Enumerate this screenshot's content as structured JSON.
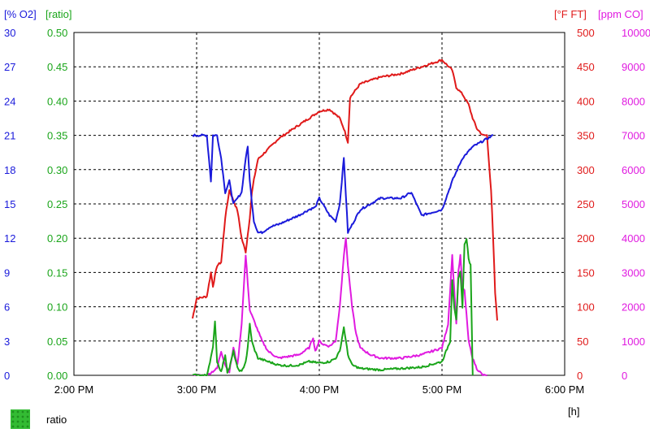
{
  "chart_data": {
    "type": "line",
    "x_unit_label": "[h]",
    "x_ticks": [
      "2:00 PM",
      "3:00 PM",
      "4:00 PM",
      "5:00 PM",
      "6:00 PM"
    ],
    "xlim": [
      "14:00",
      "18:00"
    ],
    "grid": "dashed, inner lines",
    "axes": [
      {
        "id": "o2",
        "label": "[% O2]",
        "side": "left",
        "color": "#1a1adb",
        "ticks": [
          "0",
          "3",
          "6",
          "9",
          "12",
          "15",
          "18",
          "21",
          "24",
          "27",
          "30"
        ],
        "ylim": [
          0,
          30
        ]
      },
      {
        "id": "ratio",
        "label": "[ratio]",
        "side": "left",
        "color": "#1aa51a",
        "ticks": [
          "0.00",
          "0.05",
          "0.10",
          "0.15",
          "0.20",
          "0.25",
          "0.30",
          "0.35",
          "0.40",
          "0.45",
          "0.50"
        ],
        "ylim": [
          0,
          0.5
        ]
      },
      {
        "id": "ft",
        "label": "[°F FT]",
        "side": "right",
        "color": "#e01a1a",
        "ticks": [
          "0",
          "50",
          "100",
          "150",
          "200",
          "250",
          "300",
          "350",
          "400",
          "450",
          "500"
        ],
        "ylim": [
          0,
          500
        ]
      },
      {
        "id": "co",
        "label": "[ppm CO]",
        "side": "right",
        "color": "#e01ae0",
        "ticks": [
          "0",
          "1000",
          "2000",
          "3000",
          "4000",
          "5000",
          "6000",
          "7000",
          "8000",
          "9000",
          "10000"
        ],
        "ylim": [
          0,
          10000
        ]
      }
    ],
    "series": [
      {
        "axis": "ft",
        "color": "#e01a1a",
        "x": [
          "14:58",
          "15:00",
          "15:05",
          "15:07",
          "15:08",
          "15:10",
          "15:12",
          "15:14",
          "15:16",
          "15:18",
          "15:20",
          "15:22",
          "15:24",
          "15:26",
          "15:27",
          "15:28",
          "15:30",
          "15:35",
          "15:40",
          "15:45",
          "15:50",
          "15:55",
          "16:00",
          "16:05",
          "16:10",
          "16:12",
          "16:14",
          "16:15",
          "16:20",
          "16:30",
          "16:40",
          "16:50",
          "17:00",
          "17:05",
          "17:07",
          "17:10",
          "17:13",
          "17:15",
          "17:17",
          "17:20",
          "17:22",
          "17:24",
          "17:25",
          "17:26",
          "17:27"
        ],
        "y": [
          83,
          112,
          115,
          150,
          130,
          160,
          165,
          230,
          270,
          255,
          240,
          200,
          180,
          230,
          265,
          285,
          315,
          330,
          345,
          355,
          365,
          375,
          385,
          388,
          375,
          360,
          340,
          405,
          425,
          435,
          440,
          450,
          460,
          445,
          420,
          410,
          395,
          375,
          360,
          350,
          350,
          270,
          200,
          120,
          80
        ]
      },
      {
        "axis": "o2",
        "color": "#1a1adb",
        "x": [
          "14:58",
          "15:05",
          "15:07",
          "15:08",
          "15:09",
          "15:10",
          "15:12",
          "15:14",
          "15:16",
          "15:18",
          "15:20",
          "15:22",
          "15:24",
          "15:25",
          "15:26",
          "15:28",
          "15:30",
          "15:32",
          "15:36",
          "15:40",
          "15:45",
          "15:50",
          "15:55",
          "15:58",
          "16:00",
          "16:05",
          "16:08",
          "16:10",
          "16:11",
          "16:12",
          "16:14",
          "16:20",
          "16:30",
          "16:40",
          "16:45",
          "16:50",
          "17:00",
          "17:05",
          "17:10",
          "17:15",
          "17:20",
          "17:25"
        ],
        "y": [
          21,
          21,
          17,
          21,
          21,
          21,
          19,
          16,
          17,
          15,
          15.5,
          16,
          19,
          20,
          17,
          13.5,
          12.5,
          12.5,
          13,
          13.2,
          13.6,
          14,
          14.5,
          14.7,
          15.5,
          14,
          13.5,
          15,
          17,
          19,
          12.5,
          14.5,
          15.5,
          15.5,
          16,
          14,
          14.5,
          17,
          19,
          20,
          20.5,
          21
        ]
      },
      {
        "axis": "co",
        "color": "#e01ae0",
        "x": [
          "14:58",
          "15:05",
          "15:10",
          "15:12",
          "15:14",
          "15:16",
          "15:18",
          "15:20",
          "15:22",
          "15:24",
          "15:26",
          "15:28",
          "15:30",
          "15:32",
          "15:35",
          "15:40",
          "15:45",
          "15:50",
          "15:55",
          "15:57",
          "15:58",
          "16:00",
          "16:02",
          "16:05",
          "16:08",
          "16:10",
          "16:12",
          "16:13",
          "16:14",
          "16:16",
          "16:18",
          "16:20",
          "16:25",
          "16:30",
          "16:35",
          "16:40",
          "16:45",
          "16:50",
          "17:00",
          "17:03",
          "17:05",
          "17:06",
          "17:07",
          "17:08",
          "17:09",
          "17:10",
          "17:11",
          "17:13",
          "17:15",
          "17:17",
          "17:20",
          "17:22"
        ],
        "y": [
          0,
          0,
          200,
          700,
          300,
          100,
          800,
          300,
          1500,
          3500,
          1900,
          1600,
          1300,
          1000,
          700,
          500,
          550,
          600,
          800,
          1100,
          700,
          1000,
          900,
          850,
          1000,
          2000,
          3500,
          4000,
          3200,
          2000,
          1200,
          800,
          600,
          500,
          500,
          500,
          550,
          600,
          800,
          1500,
          3500,
          2500,
          1500,
          3000,
          3500,
          2500,
          2500,
          1000,
          500,
          200,
          0,
          0
        ]
      },
      {
        "axis": "ratio",
        "color": "#1aa51a",
        "x": [
          "14:58",
          "15:05",
          "15:08",
          "15:09",
          "15:10",
          "15:12",
          "15:14",
          "15:15",
          "15:16",
          "15:18",
          "15:20",
          "15:22",
          "15:24",
          "15:25",
          "15:26",
          "15:27",
          "15:28",
          "15:30",
          "15:35",
          "15:40",
          "15:45",
          "15:50",
          "15:55",
          "16:00",
          "16:05",
          "16:08",
          "16:10",
          "16:12",
          "16:13",
          "16:14",
          "16:16",
          "16:20",
          "16:30",
          "16:40",
          "16:50",
          "17:00",
          "17:04",
          "17:05",
          "17:06",
          "17:07",
          "17:08",
          "17:09",
          "17:10",
          "17:11",
          "17:12",
          "17:13",
          "17:14",
          "17:15"
        ],
        "y": [
          0,
          0,
          0.04,
          0.08,
          0.02,
          0.005,
          0.03,
          0.005,
          0.01,
          0.035,
          0.01,
          0.005,
          0.02,
          0.04,
          0.075,
          0.05,
          0.04,
          0.025,
          0.02,
          0.015,
          0.014,
          0.015,
          0.02,
          0.018,
          0.02,
          0.025,
          0.035,
          0.07,
          0.05,
          0.03,
          0.015,
          0.01,
          0.008,
          0.01,
          0.012,
          0.02,
          0.05,
          0.14,
          0.1,
          0.08,
          0.14,
          0.15,
          0.1,
          0.19,
          0.2,
          0.17,
          0.16,
          0.0
        ]
      }
    ]
  },
  "legend": [
    {
      "label": "ratio",
      "color": "#33bb33"
    }
  ]
}
